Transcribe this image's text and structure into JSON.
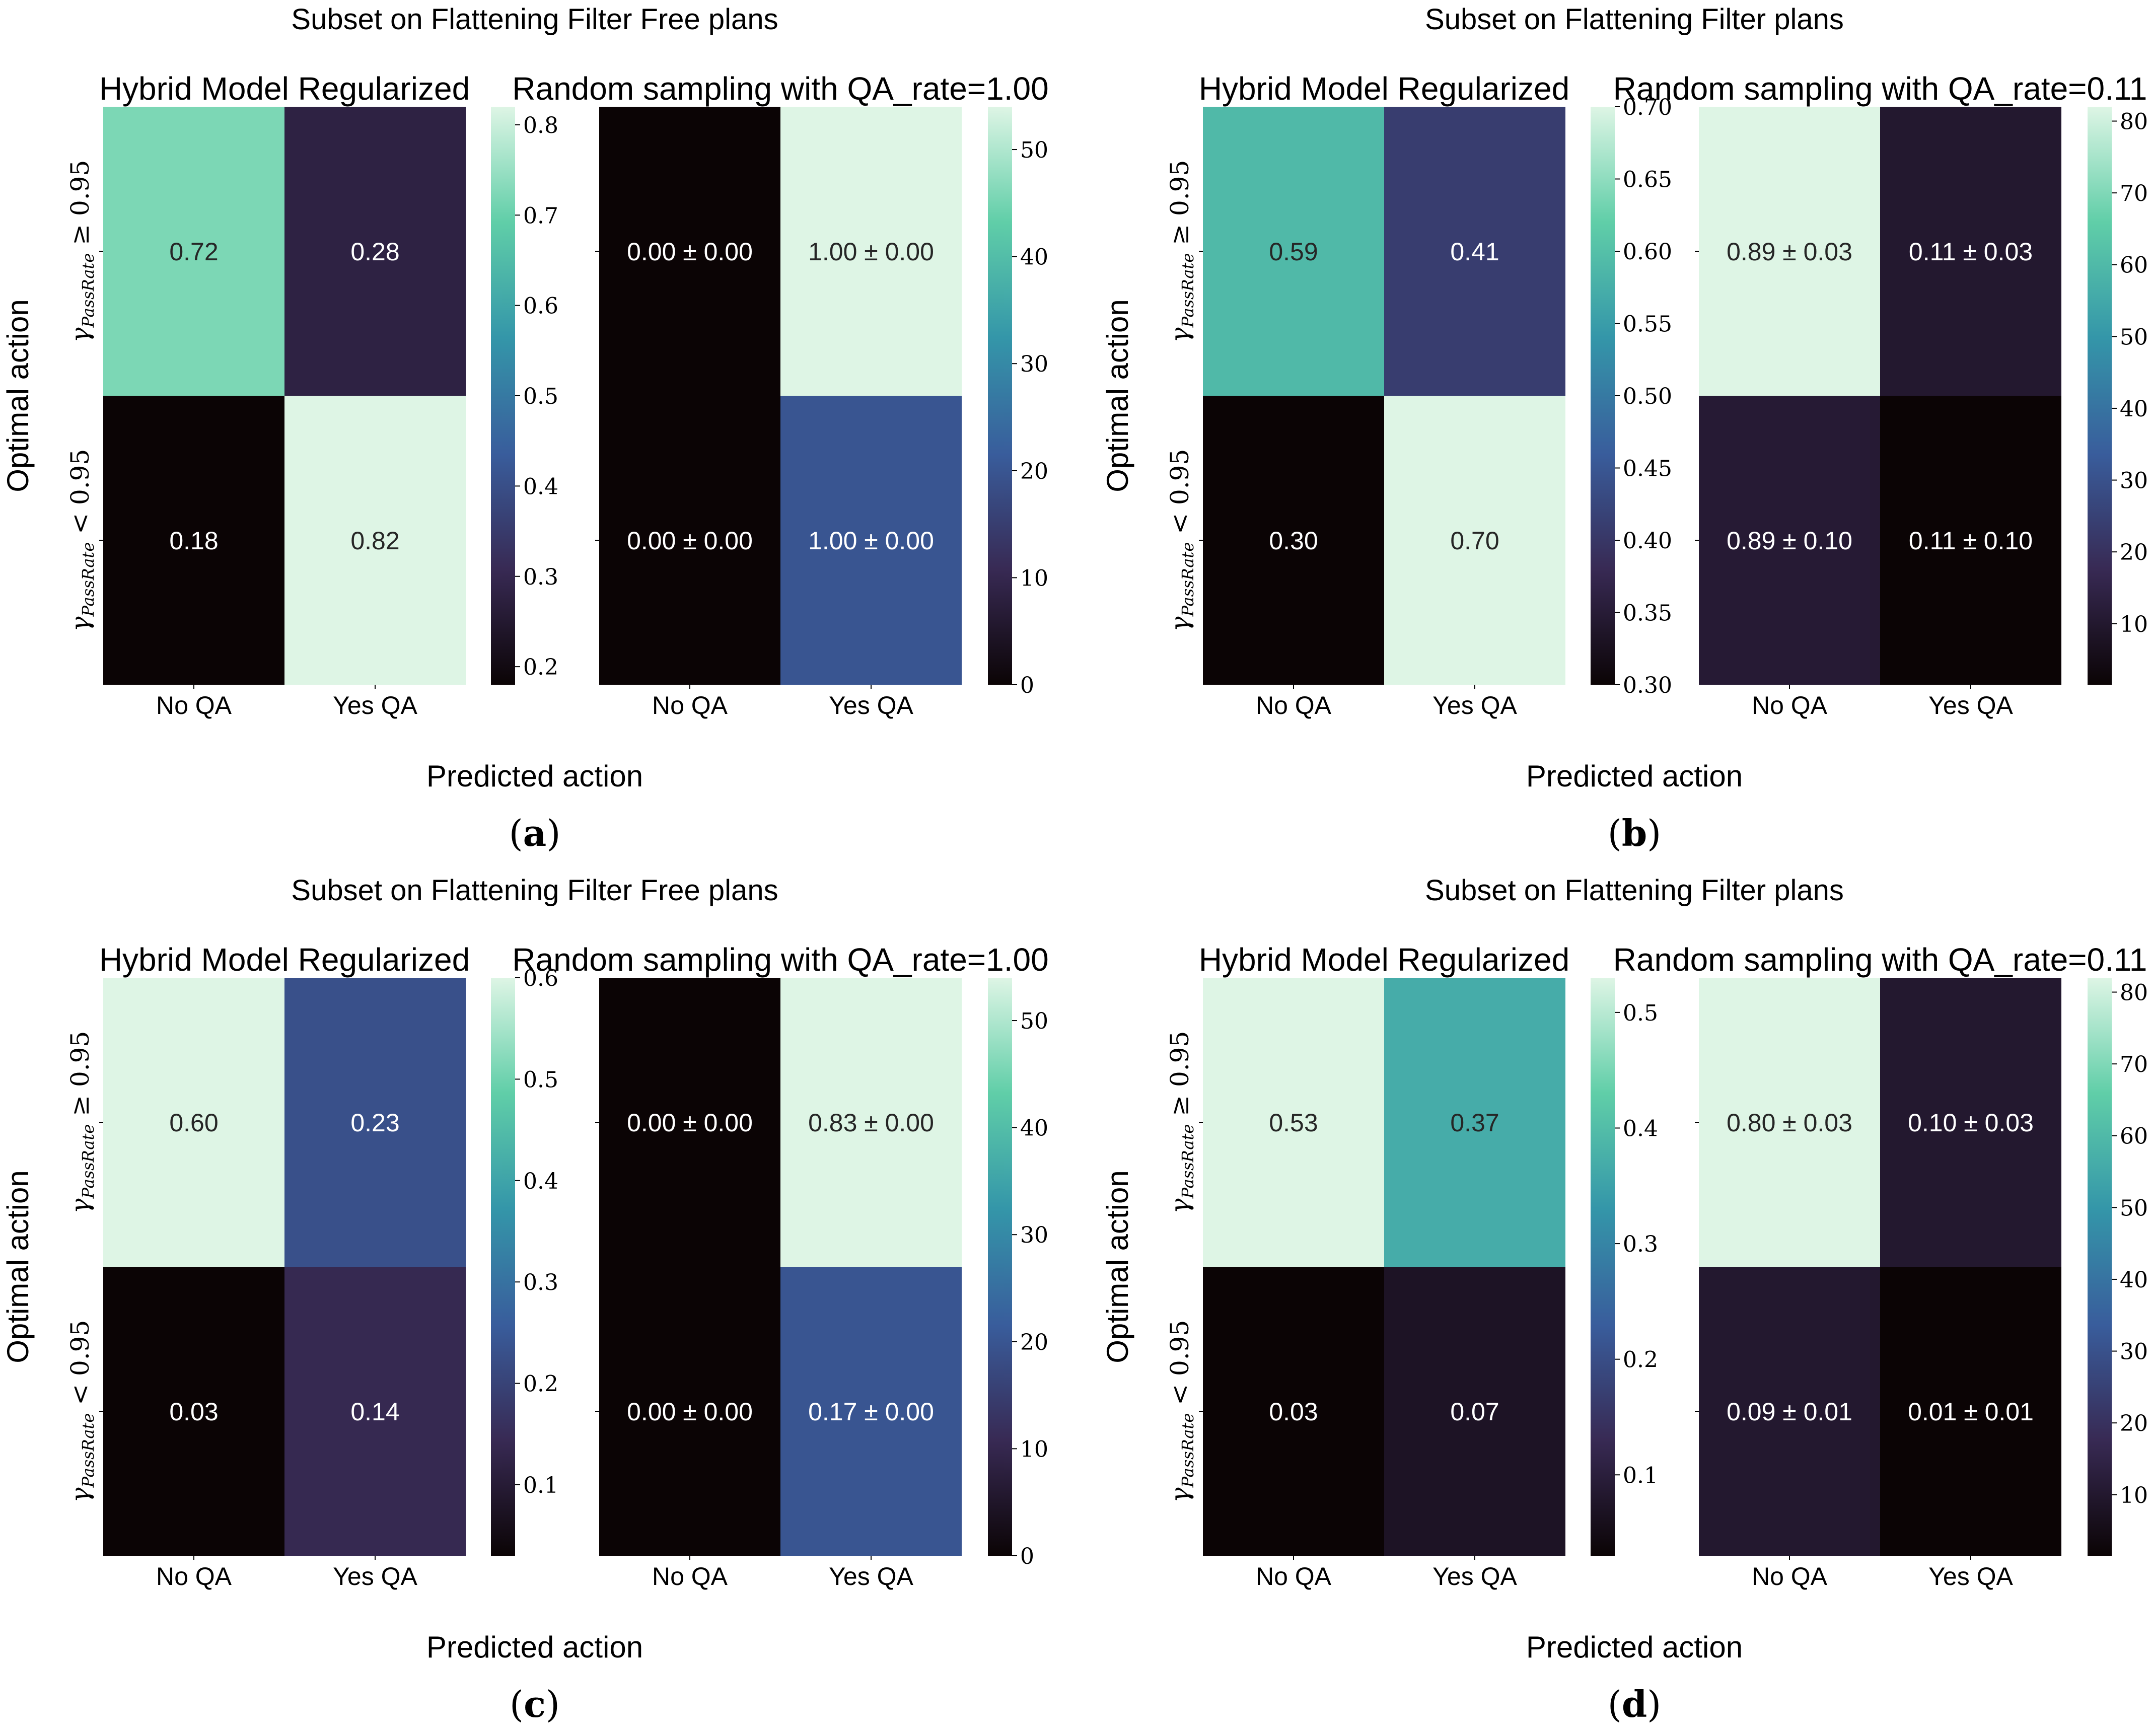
{
  "axis_labels": {
    "ylabel": "Optimal action",
    "xlabel": "Predicted action",
    "row_ge": "γPassRate ≥ 0.95",
    "row_lt": "γPassRate < 0.95"
  },
  "colormap": [
    "#0b0405",
    "#382a54",
    "#395d9c",
    "#3496a9",
    "#60cea8",
    "#def5e5"
  ],
  "chart_data": [
    {
      "panel_label": "(a)",
      "title": "Subset on Flattening Filter Free plans",
      "heatmaps": [
        {
          "type": "heatmap",
          "title": "Hybrid Model Regularized",
          "xlabel": "Predicted action",
          "ylabel": "Optimal action",
          "x_categories": [
            "No QA",
            "Yes QA"
          ],
          "y_categories": [
            "γPassRate ≥ 0.95",
            "γPassRate < 0.95"
          ],
          "values": [
            [
              0.72,
              0.28
            ],
            [
              0.18,
              0.82
            ]
          ],
          "annotations": [
            [
              "0.72",
              "0.28"
            ],
            [
              "0.18",
              "0.82"
            ]
          ],
          "vmin": 0.18,
          "vmax": 0.82,
          "colorbar_ticks": [
            "0.2",
            "0.3",
            "0.4",
            "0.5",
            "0.6",
            "0.7",
            "0.8"
          ]
        },
        {
          "type": "heatmap",
          "title": "Random sampling with QA_rate=1.00",
          "xlabel": "Predicted action",
          "x_categories": [
            "No QA",
            "Yes QA"
          ],
          "y_categories": [
            "γPassRate ≥ 0.95",
            "γPassRate < 0.95"
          ],
          "values": [
            [
              0,
              54
            ],
            [
              0,
              20
            ]
          ],
          "annotations": [
            [
              "0.00 ± 0.00",
              "1.00 ± 0.00"
            ],
            [
              "0.00 ± 0.00",
              "1.00 ± 0.00"
            ]
          ],
          "vmin": 0,
          "vmax": 54,
          "colorbar_ticks": [
            "0",
            "10",
            "20",
            "30",
            "40",
            "50"
          ]
        }
      ]
    },
    {
      "panel_label": "(b)",
      "title": "Subset on Flattening Filter plans",
      "heatmaps": [
        {
          "type": "heatmap",
          "title": "Hybrid Model Regularized",
          "xlabel": "Predicted action",
          "ylabel": "Optimal action",
          "x_categories": [
            "No QA",
            "Yes QA"
          ],
          "y_categories": [
            "γPassRate ≥ 0.95",
            "γPassRate < 0.95"
          ],
          "values": [
            [
              0.59,
              0.41
            ],
            [
              0.3,
              0.7
            ]
          ],
          "annotations": [
            [
              "0.59",
              "0.41"
            ],
            [
              "0.30",
              "0.70"
            ]
          ],
          "vmin": 0.3,
          "vmax": 0.7,
          "colorbar_ticks": [
            "0.30",
            "0.35",
            "0.40",
            "0.45",
            "0.50",
            "0.55",
            "0.60",
            "0.65",
            "0.70"
          ]
        },
        {
          "type": "heatmap",
          "title": "Random sampling with QA_rate=0.11",
          "xlabel": "Predicted action",
          "x_categories": [
            "No QA",
            "Yes QA"
          ],
          "y_categories": [
            "γPassRate ≥ 0.95",
            "γPassRate < 0.95"
          ],
          "values": [
            [
              82,
              10
            ],
            [
              11,
              1.5
            ]
          ],
          "annotations": [
            [
              "0.89 ± 0.03",
              "0.11 ± 0.03"
            ],
            [
              "0.89 ± 0.10",
              "0.11 ± 0.10"
            ]
          ],
          "vmin": 1.5,
          "vmax": 82,
          "colorbar_ticks": [
            "10",
            "20",
            "30",
            "40",
            "50",
            "60",
            "70",
            "80"
          ]
        }
      ]
    },
    {
      "panel_label": "(c)",
      "title": "Subset on Flattening Filter Free plans",
      "heatmaps": [
        {
          "type": "heatmap",
          "title": "Hybrid Model Regularized",
          "xlabel": "Predicted action",
          "ylabel": "Optimal action",
          "x_categories": [
            "No QA",
            "Yes QA"
          ],
          "y_categories": [
            "γPassRate ≥ 0.95",
            "γPassRate < 0.95"
          ],
          "values": [
            [
              0.6,
              0.23
            ],
            [
              0.03,
              0.14
            ]
          ],
          "annotations": [
            [
              "0.60",
              "0.23"
            ],
            [
              "0.03",
              "0.14"
            ]
          ],
          "vmin": 0.03,
          "vmax": 0.6,
          "colorbar_ticks": [
            "0.1",
            "0.2",
            "0.3",
            "0.4",
            "0.5",
            "0.6"
          ]
        },
        {
          "type": "heatmap",
          "title": "Random sampling with QA_rate=1.00",
          "xlabel": "Predicted action",
          "x_categories": [
            "No QA",
            "Yes QA"
          ],
          "y_categories": [
            "γPassRate ≥ 0.95",
            "γPassRate < 0.95"
          ],
          "values": [
            [
              0,
              54
            ],
            [
              0,
              20
            ]
          ],
          "annotations": [
            [
              "0.00 ± 0.00",
              "0.83 ± 0.00"
            ],
            [
              "0.00 ± 0.00",
              "0.17 ± 0.00"
            ]
          ],
          "vmin": 0,
          "vmax": 54,
          "colorbar_ticks": [
            "0",
            "10",
            "20",
            "30",
            "40",
            "50"
          ]
        }
      ]
    },
    {
      "panel_label": "(d)",
      "title": "Subset on Flattening Filter plans",
      "heatmaps": [
        {
          "type": "heatmap",
          "title": "Hybrid Model Regularized",
          "xlabel": "Predicted action",
          "ylabel": "Optimal action",
          "x_categories": [
            "No QA",
            "Yes QA"
          ],
          "y_categories": [
            "γPassRate ≥ 0.95",
            "γPassRate < 0.95"
          ],
          "values": [
            [
              0.53,
              0.37
            ],
            [
              0.03,
              0.07
            ]
          ],
          "annotations": [
            [
              "0.53",
              "0.37"
            ],
            [
              "0.03",
              "0.07"
            ]
          ],
          "vmin": 0.03,
          "vmax": 0.53,
          "colorbar_ticks": [
            "0.1",
            "0.2",
            "0.3",
            "0.4",
            "0.5"
          ]
        },
        {
          "type": "heatmap",
          "title": "Random sampling with QA_rate=0.11",
          "xlabel": "Predicted action",
          "x_categories": [
            "No QA",
            "Yes QA"
          ],
          "y_categories": [
            "γPassRate ≥ 0.95",
            "γPassRate < 0.95"
          ],
          "values": [
            [
              82,
              10
            ],
            [
              10,
              1.5
            ]
          ],
          "annotations": [
            [
              "0.80 ± 0.03",
              "0.10 ± 0.03"
            ],
            [
              "0.09 ± 0.01",
              "0.01 ± 0.01"
            ]
          ],
          "vmin": 1.5,
          "vmax": 82,
          "colorbar_ticks": [
            "10",
            "20",
            "30",
            "40",
            "50",
            "60",
            "70",
            "80"
          ]
        }
      ]
    }
  ]
}
